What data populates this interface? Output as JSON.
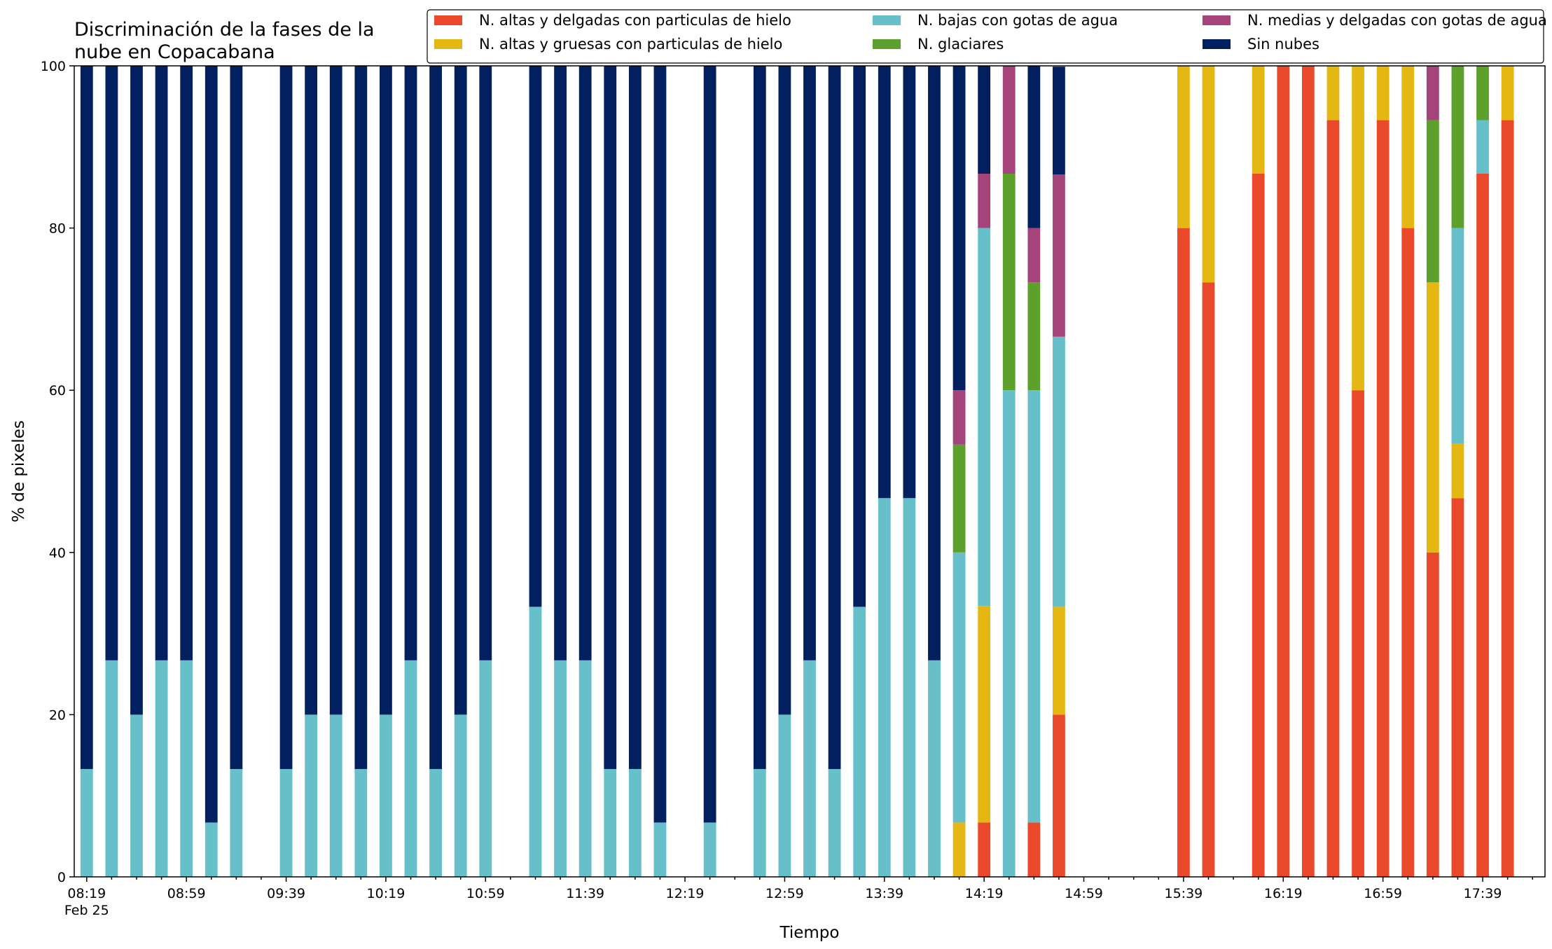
{
  "chart_data": {
    "type": "bar",
    "stacked": true,
    "title": "Discriminación de la fases de la\nnube en Copacabana",
    "xlabel": "Tiempo",
    "ylabel": "% de pixeles",
    "ylim": [
      0,
      100
    ],
    "yticks": [
      0,
      20,
      40,
      60,
      80,
      100
    ],
    "x_range": [
      "08:19",
      "17:59"
    ],
    "x_interval_minutes": 10,
    "x_tick_labels": [
      "08:19",
      "08:59",
      "09:39",
      "10:19",
      "10:59",
      "11:39",
      "12:19",
      "12:59",
      "13:39",
      "14:19",
      "14:59",
      "15:39",
      "16:19",
      "16:59",
      "17:39"
    ],
    "x_date_label": "Feb 25",
    "legend_position": "top-right",
    "legend_columns": 3,
    "categories": [
      "08:19",
      "08:29",
      "08:39",
      "08:49",
      "08:59",
      "09:09",
      "09:19",
      "09:29",
      "09:39",
      "09:49",
      "09:59",
      "10:09",
      "10:19",
      "10:29",
      "10:39",
      "10:49",
      "10:59",
      "11:09",
      "11:19",
      "11:29",
      "11:39",
      "11:49",
      "11:59",
      "12:09",
      "12:19",
      "12:29",
      "12:39",
      "12:49",
      "12:59",
      "13:09",
      "13:19",
      "13:29",
      "13:39",
      "13:49",
      "13:59",
      "14:09",
      "14:19",
      "14:29",
      "14:39",
      "14:49",
      "14:59",
      "15:09",
      "15:19",
      "15:29",
      "15:39",
      "15:49",
      "15:59",
      "16:09",
      "16:19",
      "16:29",
      "16:39",
      "16:49",
      "16:59",
      "17:09",
      "17:19",
      "17:29",
      "17:39",
      "17:49",
      "17:59"
    ],
    "series": [
      {
        "name": "N. altas y delgadas con particulas de hielo",
        "color": "#ea4a2b",
        "values": [
          0,
          0,
          0,
          0,
          0,
          0,
          0,
          null,
          0,
          0,
          0,
          0,
          0,
          0,
          0,
          0,
          0,
          null,
          0,
          0,
          0,
          0,
          0,
          0,
          null,
          0,
          null,
          0,
          0,
          0,
          0,
          0,
          0,
          0,
          0,
          0,
          6.7,
          0,
          6.7,
          20,
          null,
          null,
          null,
          null,
          80,
          73.3,
          null,
          86.7,
          100,
          100,
          93.3,
          60,
          93.3,
          80,
          40,
          46.7,
          86.7,
          93.3,
          null
        ]
      },
      {
        "name": "N. altas y gruesas con particulas de hielo",
        "color": "#e5b713",
        "values": [
          0,
          0,
          0,
          0,
          0,
          0,
          0,
          null,
          0,
          0,
          0,
          0,
          0,
          0,
          0,
          0,
          0,
          null,
          0,
          0,
          0,
          0,
          0,
          0,
          null,
          0,
          null,
          0,
          0,
          0,
          0,
          0,
          0,
          0,
          0,
          6.7,
          26.7,
          0,
          0,
          13.3,
          null,
          null,
          null,
          null,
          20,
          26.7,
          null,
          13.3,
          0,
          0,
          6.7,
          40,
          6.7,
          20,
          33.3,
          6.7,
          0,
          6.7,
          null
        ]
      },
      {
        "name": "N. bajas con gotas de agua",
        "color": "#66bfc9",
        "values": [
          13.3,
          26.7,
          20,
          26.7,
          26.7,
          6.7,
          13.3,
          null,
          13.3,
          20,
          20,
          13.3,
          20,
          26.7,
          13.3,
          20,
          26.7,
          null,
          33.3,
          26.7,
          26.7,
          13.3,
          13.3,
          6.7,
          null,
          6.7,
          null,
          13.3,
          20,
          26.7,
          13.3,
          33.3,
          46.7,
          46.7,
          26.7,
          33.3,
          46.6,
          60,
          53.3,
          33.3,
          null,
          null,
          null,
          null,
          0,
          0,
          null,
          0,
          0,
          0,
          0,
          0,
          0,
          0,
          0,
          26.6,
          6.6,
          0,
          null
        ]
      },
      {
        "name": "N. glaciares",
        "color": "#5da02b",
        "values": [
          0,
          0,
          0,
          0,
          0,
          0,
          0,
          null,
          0,
          0,
          0,
          0,
          0,
          0,
          0,
          0,
          0,
          null,
          0,
          0,
          0,
          0,
          0,
          0,
          null,
          0,
          null,
          0,
          0,
          0,
          0,
          0,
          0,
          0,
          0,
          13.3,
          0,
          26.7,
          13.3,
          0,
          null,
          null,
          null,
          null,
          0,
          0,
          null,
          0,
          0,
          0,
          0,
          0,
          0,
          0,
          20,
          20,
          6.7,
          0,
          null
        ]
      },
      {
        "name": "N. medias y delgadas con gotas de agua",
        "color": "#a4447a",
        "values": [
          0,
          0,
          0,
          0,
          0,
          0,
          0,
          null,
          0,
          0,
          0,
          0,
          0,
          0,
          0,
          0,
          0,
          null,
          0,
          0,
          0,
          0,
          0,
          0,
          null,
          0,
          null,
          0,
          0,
          0,
          0,
          0,
          0,
          0,
          0,
          6.7,
          6.7,
          13.3,
          6.7,
          20,
          null,
          null,
          null,
          null,
          0,
          0,
          null,
          0,
          0,
          0,
          0,
          0,
          0,
          0,
          6.7,
          0,
          0,
          0,
          null
        ]
      },
      {
        "name": "Sin nubes",
        "color": "#02205f",
        "values": [
          86.7,
          73.3,
          80,
          73.3,
          73.3,
          93.3,
          86.7,
          null,
          86.7,
          80,
          80,
          86.7,
          80,
          73.3,
          86.7,
          80,
          73.3,
          null,
          66.7,
          73.3,
          73.3,
          86.7,
          86.7,
          93.3,
          null,
          93.3,
          null,
          86.7,
          80,
          73.3,
          86.7,
          66.7,
          53.3,
          53.3,
          73.3,
          40,
          13.3,
          0,
          20,
          13.3,
          null,
          null,
          null,
          null,
          0,
          0,
          null,
          0,
          0,
          0,
          0,
          0,
          0,
          0,
          0,
          0,
          0,
          0,
          null
        ]
      }
    ]
  }
}
